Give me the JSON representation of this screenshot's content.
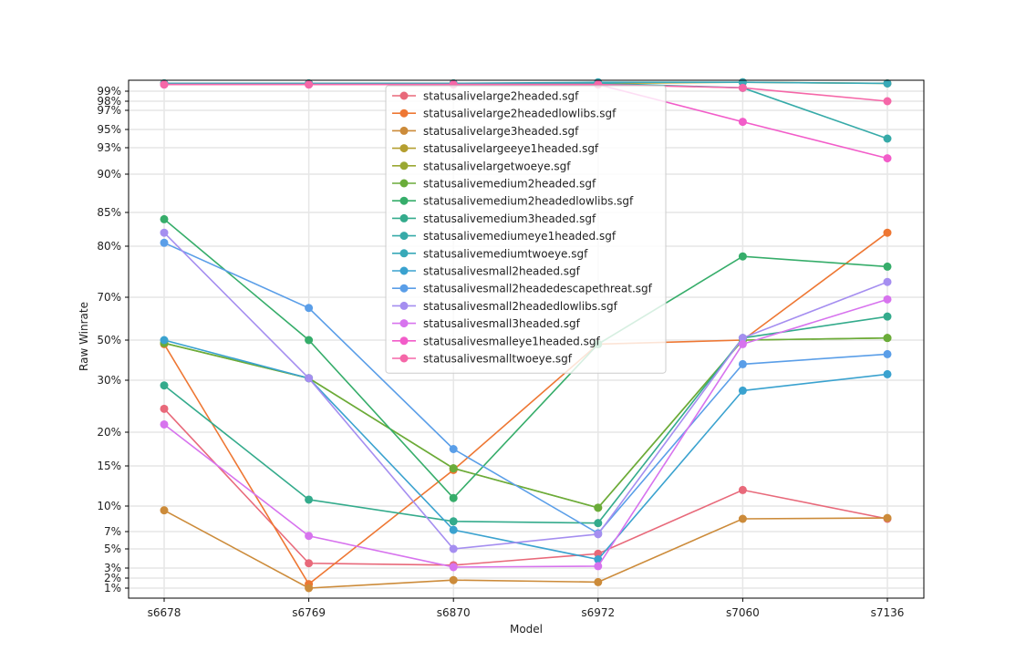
{
  "chart_data": {
    "type": "line",
    "title": "",
    "xlabel": "Model",
    "ylabel": "Raw Winrate",
    "categories": [
      "s6678",
      "s6769",
      "s6870",
      "s6972",
      "s7060",
      "s7136"
    ],
    "yscale": "nonlinear-winrate",
    "yticks": [
      1,
      2,
      3,
      5,
      7,
      10,
      15,
      20,
      30,
      50,
      70,
      80,
      85,
      90,
      93,
      95,
      97,
      98,
      99
    ],
    "ytick_labels": [
      "1%",
      "2%",
      "3%",
      "5%",
      "7%",
      "10%",
      "15%",
      "20%",
      "30%",
      "50%",
      "70%",
      "80%",
      "85%",
      "90%",
      "93%",
      "95%",
      "97%",
      "98%",
      "99%"
    ],
    "ylim": [
      0.5,
      99.9
    ],
    "grid": true,
    "legend_position": "upper-center",
    "series": [
      {
        "name": "statusalivelarge2headed.sgf",
        "color": "#e8697a",
        "values": [
          24.5,
          3.5,
          3.3,
          4.5,
          12,
          8.5
        ]
      },
      {
        "name": "statusalivelarge2headedlowlibs.sgf",
        "color": "#ee7733",
        "values": [
          48,
          1.4,
          14.5,
          48,
          50,
          82
        ]
      },
      {
        "name": "statusalivelarge3headed.sgf",
        "color": "#cc8b3a",
        "values": [
          9.5,
          1.0,
          1.8,
          1.6,
          8.5,
          8.6
        ]
      },
      {
        "name": "statusalivelargeeye1headed.sgf",
        "color": "#b59f30",
        "values": [
          99.7,
          99.7,
          99.7,
          99.7,
          99.8,
          99.7
        ]
      },
      {
        "name": "statusalivelargetwoeye.sgf",
        "color": "#9aa833",
        "values": [
          48.5,
          31,
          14.7,
          9.8,
          50,
          51
        ]
      },
      {
        "name": "statusalivemedium2headed.sgf",
        "color": "#6aac3a",
        "values": [
          48.5,
          31,
          14.7,
          9.8,
          50,
          51
        ]
      },
      {
        "name": "statusalivemedium2headedlowlibs.sgf",
        "color": "#36ad6a",
        "values": [
          84,
          50,
          11,
          48,
          78,
          76
        ]
      },
      {
        "name": "statusalivemedium3headed.sgf",
        "color": "#34ab8c",
        "values": [
          29,
          10.8,
          8.2,
          8,
          51,
          61
        ]
      },
      {
        "name": "statusalivemediumeye1headed.sgf",
        "color": "#36aaa8",
        "values": [
          99.7,
          99.7,
          99.7,
          99.7,
          99.3,
          94
        ]
      },
      {
        "name": "statusalivemediumtwoeye.sgf",
        "color": "#38a9b8",
        "values": [
          99.7,
          99.7,
          99.7,
          99.8,
          99.8,
          99.7
        ]
      },
      {
        "name": "statusalivesmall2headed.sgf",
        "color": "#3aa2cf",
        "values": [
          50,
          31,
          7.2,
          3.9,
          28,
          33
        ]
      },
      {
        "name": "statusalivesmall2headedescapethreat.sgf",
        "color": "#5a9ee8",
        "values": [
          80.5,
          65,
          17.5,
          6.8,
          38,
          43
        ]
      },
      {
        "name": "statusalivesmall2headedlowlibs.sgf",
        "color": "#a58ef0",
        "values": [
          82,
          31,
          5,
          6.7,
          51,
          73
        ]
      },
      {
        "name": "statusalivesmall3headed.sgf",
        "color": "#d773ee",
        "values": [
          21.5,
          6.5,
          3.1,
          3.2,
          48,
          69
        ]
      },
      {
        "name": "statusalivesmalleye1headed.sgf",
        "color": "#f25cc9",
        "values": [
          99.6,
          99.6,
          99.6,
          99.6,
          95.8,
          91.8
        ]
      },
      {
        "name": "statusalivesmalltwoeye.sgf",
        "color": "#f567a8",
        "values": [
          99.6,
          99.6,
          99.6,
          99.6,
          99.3,
          98
        ]
      }
    ]
  }
}
